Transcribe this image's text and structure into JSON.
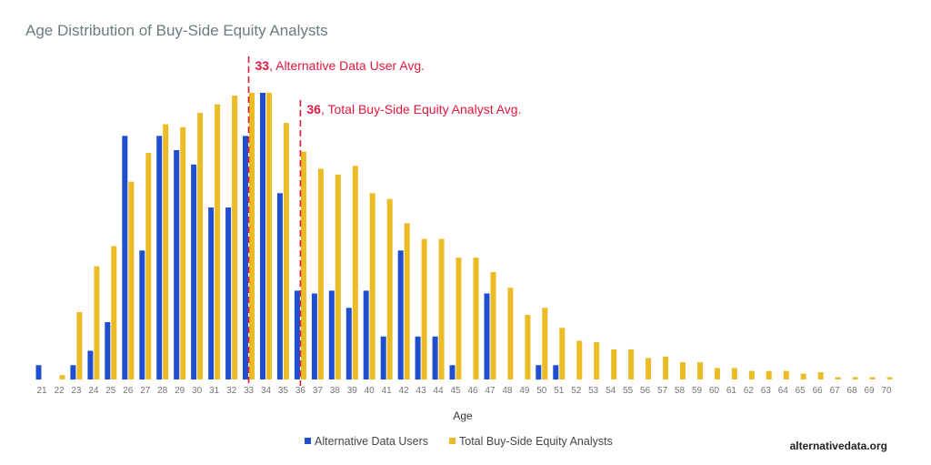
{
  "chart_data": {
    "type": "bar",
    "title": "Age Distribution of Buy-Side Equity Analysts",
    "xlabel": "Age",
    "ylabel": "",
    "ylim": [
      0,
      100
    ],
    "categories": [
      "21",
      "22",
      "23",
      "24",
      "25",
      "26",
      "27",
      "28",
      "29",
      "30",
      "31",
      "32",
      "33",
      "34",
      "35",
      "36",
      "37",
      "38",
      "39",
      "40",
      "41",
      "42",
      "43",
      "44",
      "45",
      "46",
      "47",
      "48",
      "49",
      "50",
      "51",
      "52",
      "53",
      "54",
      "55",
      "56",
      "57",
      "58",
      "59",
      "60",
      "61",
      "62",
      "63",
      "64",
      "65",
      "66",
      "67",
      "68",
      "69",
      "70"
    ],
    "series": [
      {
        "name": "Alternative Data Users",
        "color": "#1f4fcf",
        "values": [
          5,
          0,
          5,
          10,
          20,
          85,
          45,
          85,
          80,
          75,
          60,
          60,
          85,
          100,
          65,
          31,
          30,
          31,
          25,
          31,
          15,
          45,
          15,
          15,
          5,
          0,
          30,
          0,
          0,
          5,
          5,
          0,
          0,
          0,
          0,
          0,
          0,
          0,
          0,
          0,
          0,
          0,
          0,
          0,
          0,
          0,
          0,
          0,
          0,
          0
        ]
      },
      {
        "name": "Total Buy-Side Equity Analysts",
        "color": "#ebbc26",
        "values": [
          0,
          1.5,
          23.5,
          39.5,
          46.5,
          69,
          79,
          89,
          88,
          93,
          96,
          99,
          100,
          100,
          89.5,
          79.5,
          73.5,
          71.5,
          74.5,
          65,
          63,
          54.5,
          49,
          49,
          42.5,
          42.5,
          37.5,
          32,
          22.5,
          25,
          18,
          13.5,
          13,
          10.5,
          10.5,
          7.5,
          8,
          6,
          6,
          4,
          4,
          3,
          3,
          3,
          2,
          2.5,
          0.8,
          0.8,
          0.8,
          0.8
        ]
      }
    ],
    "annotations": [
      {
        "value": "33",
        "text": ", Alternative Data User Avg.",
        "category": "33"
      },
      {
        "value": "36",
        "text": ", Total Buy-Side Equity Analyst Avg.",
        "category": "36"
      }
    ],
    "legend_position": "bottom-center",
    "grid": false
  },
  "source": "alternativedata.org"
}
